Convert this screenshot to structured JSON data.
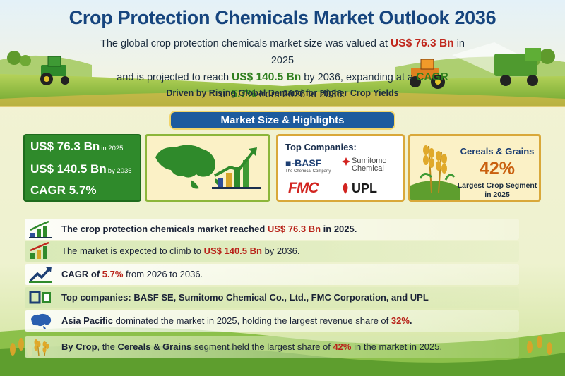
{
  "header": {
    "title": "Crop Protection Chemicals Market Outlook 2036",
    "intro": {
      "p1": "The global crop protection chemicals market size was valued at",
      "value_2025": "US$ 76.3 Bn",
      "p2": "in 2025",
      "p3": "and is projected to reach",
      "value_2036": "US$ 140.5 Bn",
      "p4": "by 2036, expanding at a",
      "cagr_label": "CAGR",
      "p5": "of",
      "cagr_value": "5.7%",
      "p6": "from 2026 to 2036."
    },
    "driven": "Driven by Rising Global Demand for Higher Crop Yields"
  },
  "section_banner": "Market Size & Highlights",
  "stats_card": {
    "v2025": "US$ 76.3 Bn",
    "v2025_suffix": "in 2025",
    "v2036": "US$ 140.5 Bn",
    "v2036_suffix": "by 2036",
    "cagr": "CAGR 5.7%"
  },
  "companies_card": {
    "title": "Top Companies:",
    "basf": "■-BASF",
    "basf_tagline": "The Chemical Company",
    "sumitomo_line1": "Sumitomo",
    "sumitomo_line2": "Chemical",
    "fmc": "FMC",
    "upl": "UPL"
  },
  "crop_card": {
    "segment": "Cereals & Grains",
    "share": "42%",
    "sub_line1": "Largest Crop Segment",
    "sub_line2": "in 2025"
  },
  "highlights": [
    {
      "a": "The crop protection chemicals market reached ",
      "hl": "US$ 76.3 Bn",
      "b": " in 2025.",
      "icon": "bar-chart-icon"
    },
    {
      "a": "The market is expected to climb to ",
      "hl": "US$ 140.5 Bn",
      "b": " by 2036.",
      "icon": "bar-chart-icon"
    },
    {
      "a": "CAGR of ",
      "hl": "5.7%",
      "b": " from 2026 to 2036.",
      "icon": "trend-line-icon"
    },
    {
      "a": "Top companies: BASF SE, Sumitomo Chemical Co., Ltd., FMC Corporation, and UPL",
      "hl": "",
      "b": "",
      "icon": "company-squares-icon"
    },
    {
      "a0": "Asia Pacific",
      "a": " dominated the market in 2025, holding the largest revenue share of ",
      "hl": "32%",
      "b": ".",
      "icon": "asia-map-icon"
    },
    {
      "a0": "By Crop",
      "a1": ", the ",
      "a2": "Cereals & Grains",
      "a": " segment held the largest share of ",
      "hl": "42%",
      "b": " in the market in 2025.",
      "icon": "wheat-icon"
    }
  ],
  "colors": {
    "title_blue": "#16457e",
    "highlight_red": "#c0281e",
    "highlight_green": "#2f7f1f",
    "card_green": "#2f8a2b",
    "gold_border": "#d9a83a",
    "pct_orange": "#c9600f"
  }
}
